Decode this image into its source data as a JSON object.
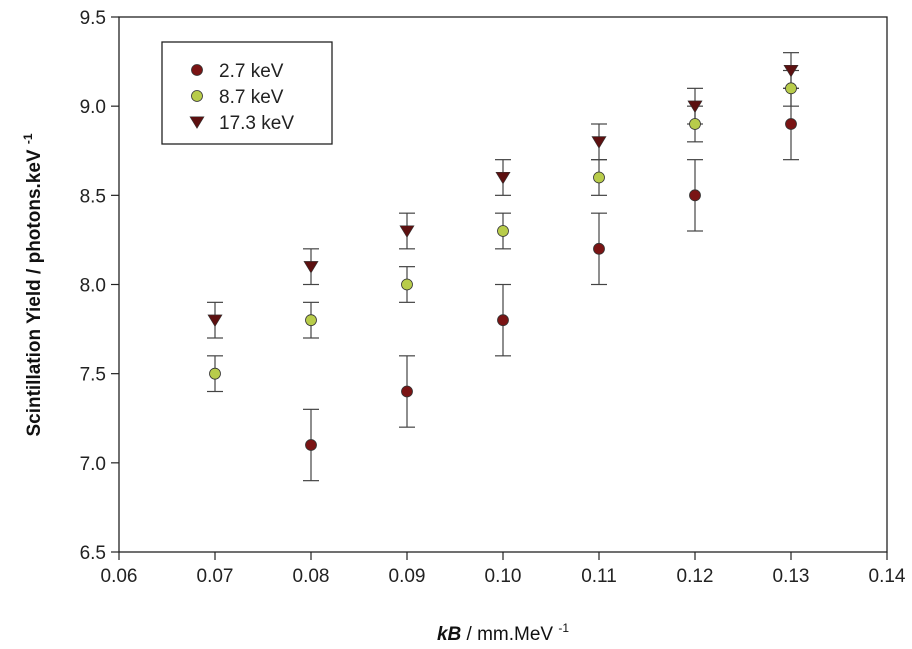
{
  "chart_data": {
    "type": "scatter",
    "xlabel": {
      "italic": "kB",
      "rest": "/ mm.MeV",
      "sup": "-1"
    },
    "ylabel": {
      "main": "Scintillation Yield / photons.keV",
      "sup": "-1"
    },
    "xlim": [
      0.06,
      0.14
    ],
    "ylim": [
      6.5,
      9.5
    ],
    "x_ticks": [
      "0.06",
      "0.07",
      "0.08",
      "0.09",
      "0.10",
      "0.11",
      "0.12",
      "0.13",
      "0.14"
    ],
    "y_ticks": [
      "6.5",
      "7.0",
      "7.5",
      "8.0",
      "8.5",
      "9.0",
      "9.5"
    ],
    "grid": false,
    "legend_position": "top-left",
    "series": [
      {
        "name": "2.7 keV",
        "marker": "circle",
        "color": "#7a1414",
        "x": [
          0.08,
          0.09,
          0.1,
          0.11,
          0.12,
          0.13
        ],
        "y": [
          7.1,
          7.4,
          7.8,
          8.2,
          8.5,
          8.9
        ],
        "err": [
          0.2,
          0.2,
          0.2,
          0.2,
          0.2,
          0.2
        ]
      },
      {
        "name": "8.7 keV",
        "marker": "circle",
        "color": "#b8cc4a",
        "x": [
          0.07,
          0.08,
          0.09,
          0.1,
          0.11,
          0.12,
          0.13
        ],
        "y": [
          7.5,
          7.8,
          8.0,
          8.3,
          8.6,
          8.9,
          9.1
        ],
        "err": [
          0.1,
          0.1,
          0.1,
          0.1,
          0.1,
          0.1,
          0.1
        ]
      },
      {
        "name": "17.3 keV",
        "marker": "triangle-down",
        "color": "#5c1010",
        "x": [
          0.07,
          0.08,
          0.09,
          0.1,
          0.11,
          0.12,
          0.13
        ],
        "y": [
          7.8,
          8.1,
          8.3,
          8.6,
          8.8,
          9.0,
          9.2
        ],
        "err": [
          0.1,
          0.1,
          0.1,
          0.1,
          0.1,
          0.1,
          0.1
        ]
      }
    ]
  }
}
